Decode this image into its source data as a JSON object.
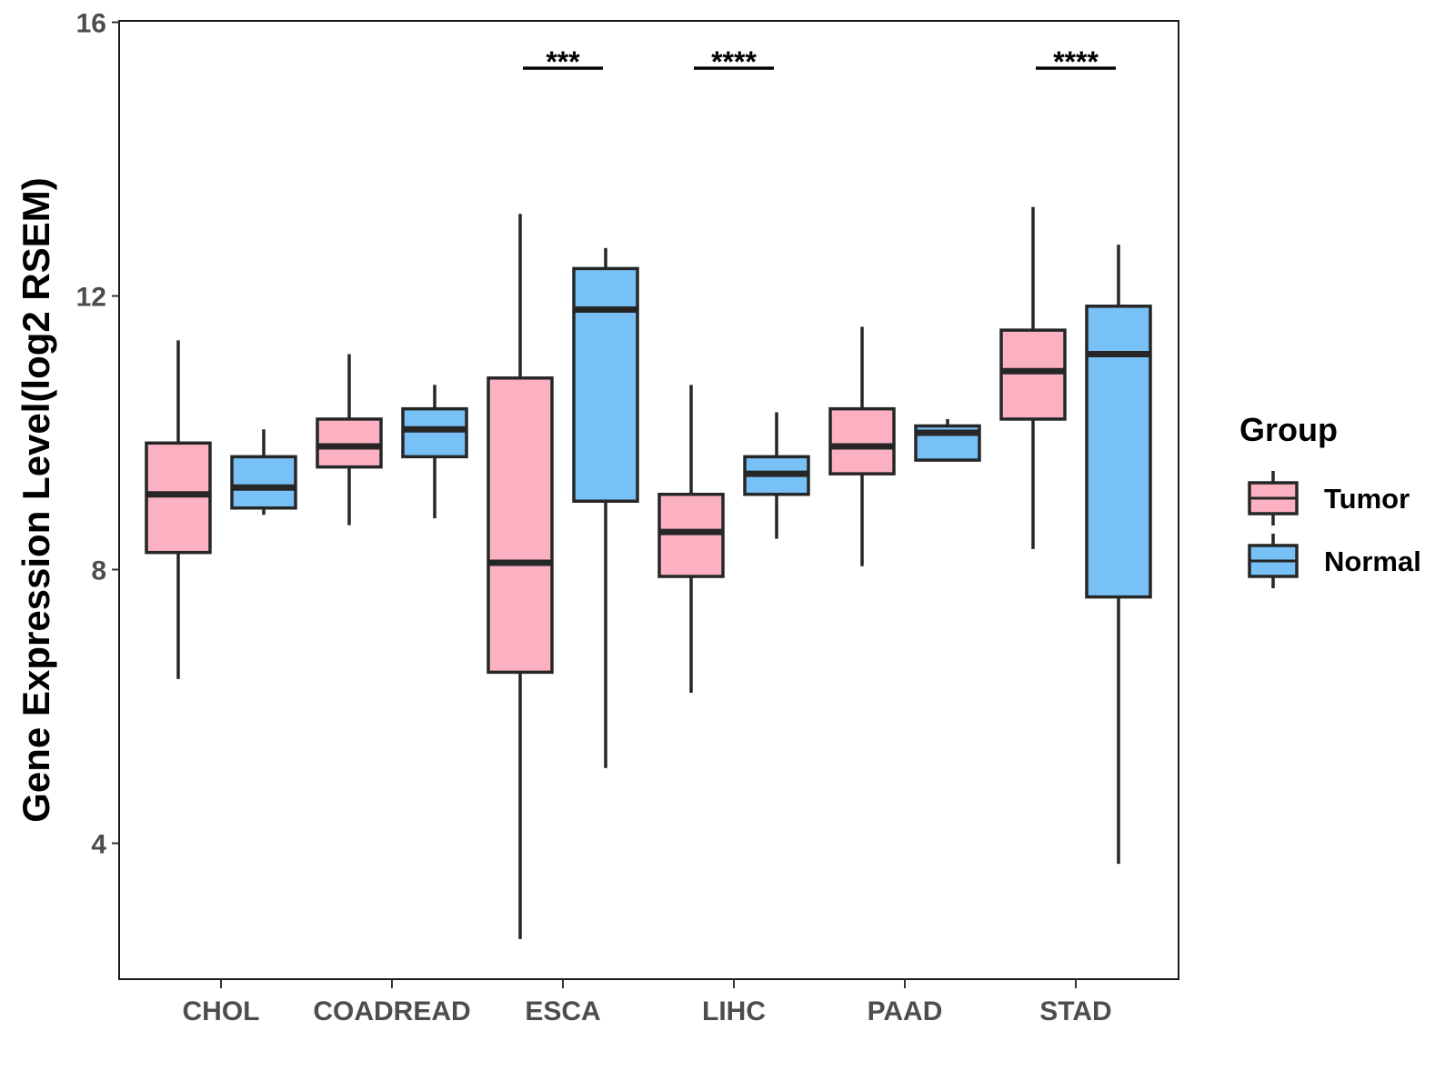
{
  "chart_data": {
    "type": "boxplot",
    "title": "",
    "xlabel": "",
    "ylabel": "Gene Expression Level(log2 RSEM)",
    "ylim": [
      2.2,
      16
    ],
    "yticks": [
      4,
      8,
      12,
      16
    ],
    "categories": [
      "CHOL",
      "COADREAD",
      "ESCA",
      "LIHC",
      "PAAD",
      "STAD"
    ],
    "legend": {
      "title": "Group",
      "position": "right",
      "entries": [
        {
          "name": "Tumor",
          "color": "#FBB1C1"
        },
        {
          "name": "Normal",
          "color": "#78C1F7"
        }
      ]
    },
    "series": [
      {
        "name": "Tumor",
        "color": "#FBB1C1",
        "boxes": [
          {
            "category": "CHOL",
            "lower_whisker": 6.4,
            "q1": 8.25,
            "median": 9.1,
            "q3": 9.85,
            "upper_whisker": 11.35
          },
          {
            "category": "COADREAD",
            "lower_whisker": 8.65,
            "q1": 9.5,
            "median": 9.8,
            "q3": 10.2,
            "upper_whisker": 11.15
          },
          {
            "category": "ESCA",
            "lower_whisker": 2.6,
            "q1": 6.5,
            "median": 8.1,
            "q3": 10.8,
            "upper_whisker": 13.2
          },
          {
            "category": "LIHC",
            "lower_whisker": 6.2,
            "q1": 7.9,
            "median": 8.55,
            "q3": 9.1,
            "upper_whisker": 10.7
          },
          {
            "category": "PAAD",
            "lower_whisker": 8.05,
            "q1": 9.4,
            "median": 9.8,
            "q3": 10.35,
            "upper_whisker": 11.55
          },
          {
            "category": "STAD",
            "lower_whisker": 8.3,
            "q1": 10.2,
            "median": 10.9,
            "q3": 11.5,
            "upper_whisker": 13.3
          }
        ]
      },
      {
        "name": "Normal",
        "color": "#78C1F7",
        "boxes": [
          {
            "category": "CHOL",
            "lower_whisker": 8.8,
            "q1": 8.9,
            "median": 9.2,
            "q3": 9.65,
            "upper_whisker": 10.05
          },
          {
            "category": "COADREAD",
            "lower_whisker": 8.75,
            "q1": 9.65,
            "median": 10.05,
            "q3": 10.35,
            "upper_whisker": 10.7
          },
          {
            "category": "ESCA",
            "lower_whisker": 5.1,
            "q1": 9.0,
            "median": 11.8,
            "q3": 12.4,
            "upper_whisker": 12.7
          },
          {
            "category": "LIHC",
            "lower_whisker": 8.45,
            "q1": 9.1,
            "median": 9.4,
            "q3": 9.65,
            "upper_whisker": 10.3
          },
          {
            "category": "PAAD",
            "lower_whisker": 9.6,
            "q1": 9.6,
            "median": 10.0,
            "q3": 10.1,
            "upper_whisker": 10.2
          },
          {
            "category": "STAD",
            "lower_whisker": 3.7,
            "q1": 7.6,
            "median": 11.15,
            "q3": 11.85,
            "upper_whisker": 12.75
          }
        ]
      }
    ],
    "significance": [
      {
        "category": "ESCA",
        "label": "***",
        "y": 15.3
      },
      {
        "category": "LIHC",
        "label": "****",
        "y": 15.3
      },
      {
        "category": "STAD",
        "label": "****",
        "y": 15.3
      }
    ]
  }
}
